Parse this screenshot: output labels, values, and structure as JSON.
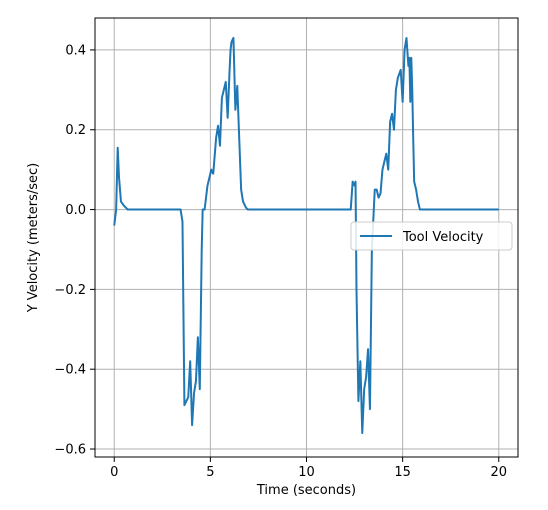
{
  "chart_data": {
    "type": "line",
    "title": "",
    "xlabel": "Time (seconds)",
    "ylabel": "Y Velocity (meters/sec)",
    "xlim": [
      -1,
      21
    ],
    "ylim": [
      -0.62,
      0.48
    ],
    "x_ticks": [
      0,
      5,
      10,
      15,
      20
    ],
    "x_tick_labels": [
      "0",
      "5",
      "10",
      "15",
      "20"
    ],
    "y_ticks": [
      -0.6,
      -0.4,
      -0.2,
      0.0,
      0.2,
      0.4
    ],
    "y_tick_labels": [
      "−0.6",
      "−0.4",
      "−0.2",
      "0.0",
      "0.2",
      "0.4"
    ],
    "grid": true,
    "legend_position": "center-right",
    "series": [
      {
        "name": "Tool Velocity",
        "color": "#1f77b4",
        "x": [
          0.0,
          0.1,
          0.18,
          0.25,
          0.35,
          0.5,
          0.7,
          1.0,
          1.5,
          2.0,
          2.5,
          3.0,
          3.45,
          3.55,
          3.65,
          3.75,
          3.85,
          3.95,
          4.05,
          4.15,
          4.25,
          4.35,
          4.45,
          4.55,
          4.6,
          4.65,
          4.7,
          4.85,
          4.95,
          5.05,
          5.15,
          5.3,
          5.4,
          5.5,
          5.6,
          5.7,
          5.8,
          5.9,
          6.0,
          6.05,
          6.1,
          6.2,
          6.3,
          6.4,
          6.5,
          6.6,
          6.7,
          6.85,
          6.95,
          7.1,
          7.3,
          7.5,
          8.0,
          9.0,
          10.0,
          11.0,
          12.0,
          12.3,
          12.4,
          12.5,
          12.55,
          12.6,
          12.7,
          12.8,
          12.9,
          13.0,
          13.1,
          13.2,
          13.3,
          13.4,
          13.55,
          13.65,
          13.75,
          13.85,
          13.95,
          14.05,
          14.15,
          14.25,
          14.35,
          14.45,
          14.55,
          14.65,
          14.75,
          14.9,
          15.0,
          15.1,
          15.2,
          15.3,
          15.35,
          15.4,
          15.45,
          15.5,
          15.55,
          15.6,
          15.7,
          15.8,
          15.9,
          16.1,
          16.3,
          16.5,
          17.0,
          18.0,
          19.0,
          20.0
        ],
        "values": [
          -0.04,
          0.0,
          0.155,
          0.08,
          0.02,
          0.01,
          0.0,
          0.0,
          0.0,
          0.0,
          0.0,
          0.0,
          0.0,
          -0.03,
          -0.49,
          -0.48,
          -0.47,
          -0.38,
          -0.54,
          -0.46,
          -0.43,
          -0.32,
          -0.45,
          -0.1,
          0.0,
          0.0,
          0.0,
          0.06,
          0.08,
          0.1,
          0.09,
          0.18,
          0.21,
          0.16,
          0.28,
          0.3,
          0.32,
          0.23,
          0.35,
          0.4,
          0.42,
          0.43,
          0.25,
          0.31,
          0.18,
          0.05,
          0.02,
          0.005,
          0.0,
          0.0,
          0.0,
          0.0,
          0.0,
          0.0,
          0.0,
          0.0,
          0.0,
          0.0,
          0.07,
          0.06,
          0.07,
          -0.2,
          -0.48,
          -0.38,
          -0.56,
          -0.45,
          -0.42,
          -0.35,
          -0.5,
          -0.1,
          0.05,
          0.05,
          0.03,
          0.04,
          0.1,
          0.12,
          0.14,
          0.1,
          0.22,
          0.24,
          0.2,
          0.3,
          0.33,
          0.35,
          0.27,
          0.4,
          0.43,
          0.36,
          0.38,
          0.27,
          0.38,
          0.3,
          0.18,
          0.07,
          0.05,
          0.02,
          0.0,
          0.0,
          0.0,
          0.0,
          0.0,
          0.0,
          0.0,
          0.0
        ]
      }
    ]
  }
}
